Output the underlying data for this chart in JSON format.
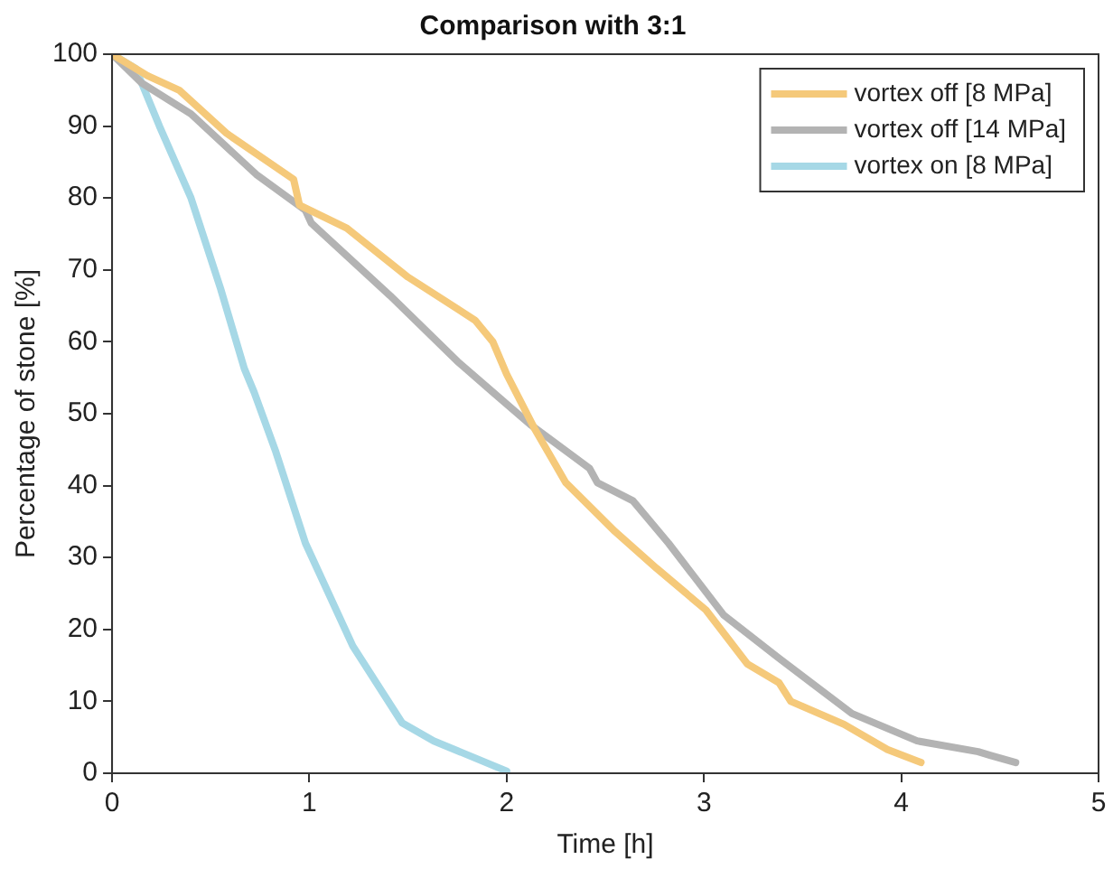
{
  "chart_data": {
    "type": "line",
    "title": "Comparison with 3:1",
    "xlabel": "Time [h]",
    "ylabel": "Percentage of stone [%]",
    "xlim": [
      0,
      5
    ],
    "xticks": [
      0,
      1,
      2,
      3,
      4,
      5
    ],
    "ylim": [
      0,
      100
    ],
    "yticks": [
      0,
      10,
      20,
      30,
      40,
      50,
      60,
      70,
      80,
      90,
      100
    ],
    "grid": false,
    "legend": "top right",
    "marker": "none",
    "line_style": "solid",
    "series": [
      {
        "name": "vortex off [8 MPa]",
        "color": "#f5c97a",
        "x": [
          0,
          0.18,
          0.34,
          0.58,
          0.92,
          0.95,
          1.19,
          1.5,
          1.84,
          1.87,
          1.93,
          2.0,
          2.14,
          2.3,
          2.55,
          2.76,
          3.01,
          3.22,
          3.38,
          3.44,
          3.71,
          3.93,
          4.1
        ],
        "values": [
          100,
          97,
          95,
          89,
          82.6,
          79,
          75.8,
          69,
          63,
          62,
          60,
          55.5,
          48,
          40.4,
          33.6,
          28.5,
          22.7,
          15.2,
          12.6,
          10,
          6.8,
          3.3,
          1.5
        ]
      },
      {
        "name": "vortex off [14 MPa]",
        "color": "#b3b3b3",
        "x": [
          0,
          0.15,
          0.4,
          0.73,
          0.98,
          1.01,
          1.41,
          1.75,
          1.93,
          2.12,
          2.42,
          2.46,
          2.64,
          2.82,
          3.1,
          3.38,
          3.75,
          4.08,
          4.39,
          4.45,
          4.58
        ],
        "values": [
          100,
          96,
          91.7,
          83.3,
          78.3,
          76.5,
          66.4,
          57.3,
          53,
          48.5,
          42.4,
          40.4,
          37.9,
          32,
          22,
          16,
          8.3,
          4.5,
          3,
          2.5,
          1.5
        ]
      },
      {
        "name": "vortex on [8 MPa]",
        "color": "#a6d8e6",
        "x": [
          0,
          0.12,
          0.24,
          0.4,
          0.55,
          0.67,
          0.72,
          0.83,
          0.98,
          1.22,
          1.47,
          1.63,
          2.0
        ],
        "values": [
          100,
          98,
          90,
          80,
          67.4,
          56.3,
          53,
          44.7,
          32,
          17.7,
          7,
          4.5,
          0.3
        ]
      }
    ]
  }
}
